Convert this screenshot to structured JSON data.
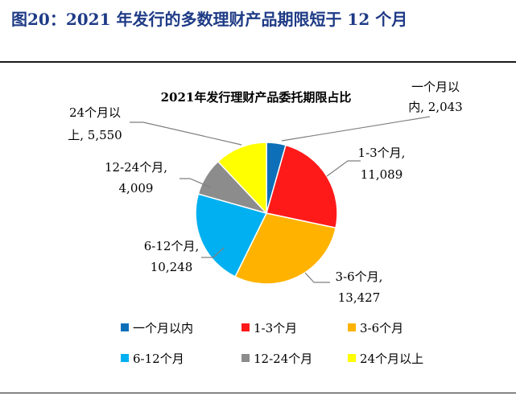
{
  "figure": {
    "title": "图20：2021 年发行的多数理财产品期限短于 12 个月"
  },
  "chart_data": {
    "type": "pie",
    "title": "2021年发行理财产品委托期限占比",
    "slices": [
      {
        "name": "一个月以内",
        "value": 2043,
        "display": "2,043",
        "color": "#0d6fb8",
        "label_lines": [
          "一个月以",
          "内, 2,043"
        ]
      },
      {
        "name": "1-3个月",
        "value": 11089,
        "display": "11,089",
        "color": "#ff1a1a",
        "label_lines": [
          "1-3个月,",
          "11,089"
        ]
      },
      {
        "name": "3-6个月",
        "value": 13427,
        "display": "13,427",
        "color": "#ffb300",
        "label_lines": [
          "3-6个月,",
          "13,427"
        ]
      },
      {
        "name": "6-12个月",
        "value": 10248,
        "display": "10,248",
        "color": "#00b0f0",
        "label_lines": [
          "6-12个月,",
          "10,248"
        ]
      },
      {
        "name": "12-24个月",
        "value": 4009,
        "display": "4,009",
        "color": "#8c8c8c",
        "label_lines": [
          "12-24个月,",
          "4,009"
        ]
      },
      {
        "name": "24个月以上",
        "value": 5550,
        "display": "5,550",
        "color": "#ffff00",
        "label_lines": [
          "24个月以",
          "上, 5,550"
        ]
      }
    ],
    "legend": {
      "position": "bottom",
      "items": [
        "一个月以内",
        "1-3个月",
        "3-6个月",
        "6-12个月",
        "12-24个月",
        "24个月以上"
      ]
    }
  }
}
